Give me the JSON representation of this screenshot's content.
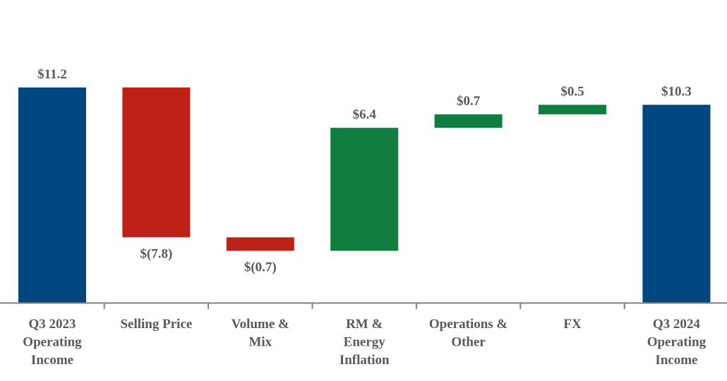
{
  "chart_data": {
    "type": "waterfall",
    "title": "",
    "xlabel": "",
    "ylabel": "",
    "ylim": [
      0,
      11.2
    ],
    "grid": false,
    "legend": "none",
    "categories": [
      [
        "Q3 2023",
        "Operating",
        "Income"
      ],
      [
        "Selling Price"
      ],
      [
        "Volume &",
        "Mix"
      ],
      [
        "RM &",
        "Energy",
        "Inflation"
      ],
      [
        "Operations &",
        "Other"
      ],
      [
        "FX"
      ],
      [
        "Q3 2024",
        "Operating",
        "Income"
      ]
    ],
    "values": [
      11.2,
      -7.8,
      -0.7,
      6.4,
      0.7,
      0.5,
      10.3
    ],
    "bar_kind": [
      "total",
      "delta",
      "delta",
      "delta",
      "delta",
      "delta",
      "total"
    ],
    "data_labels": [
      "$11.2",
      "$(7.8)",
      "$(0.7)",
      "$6.4",
      "$0.7",
      "$0.5",
      "$10.3"
    ],
    "colors": {
      "total": "#00467f",
      "decrease": "#be2217",
      "increase": "#0f7e3f",
      "axis": "#808080",
      "label": "#595959"
    }
  }
}
